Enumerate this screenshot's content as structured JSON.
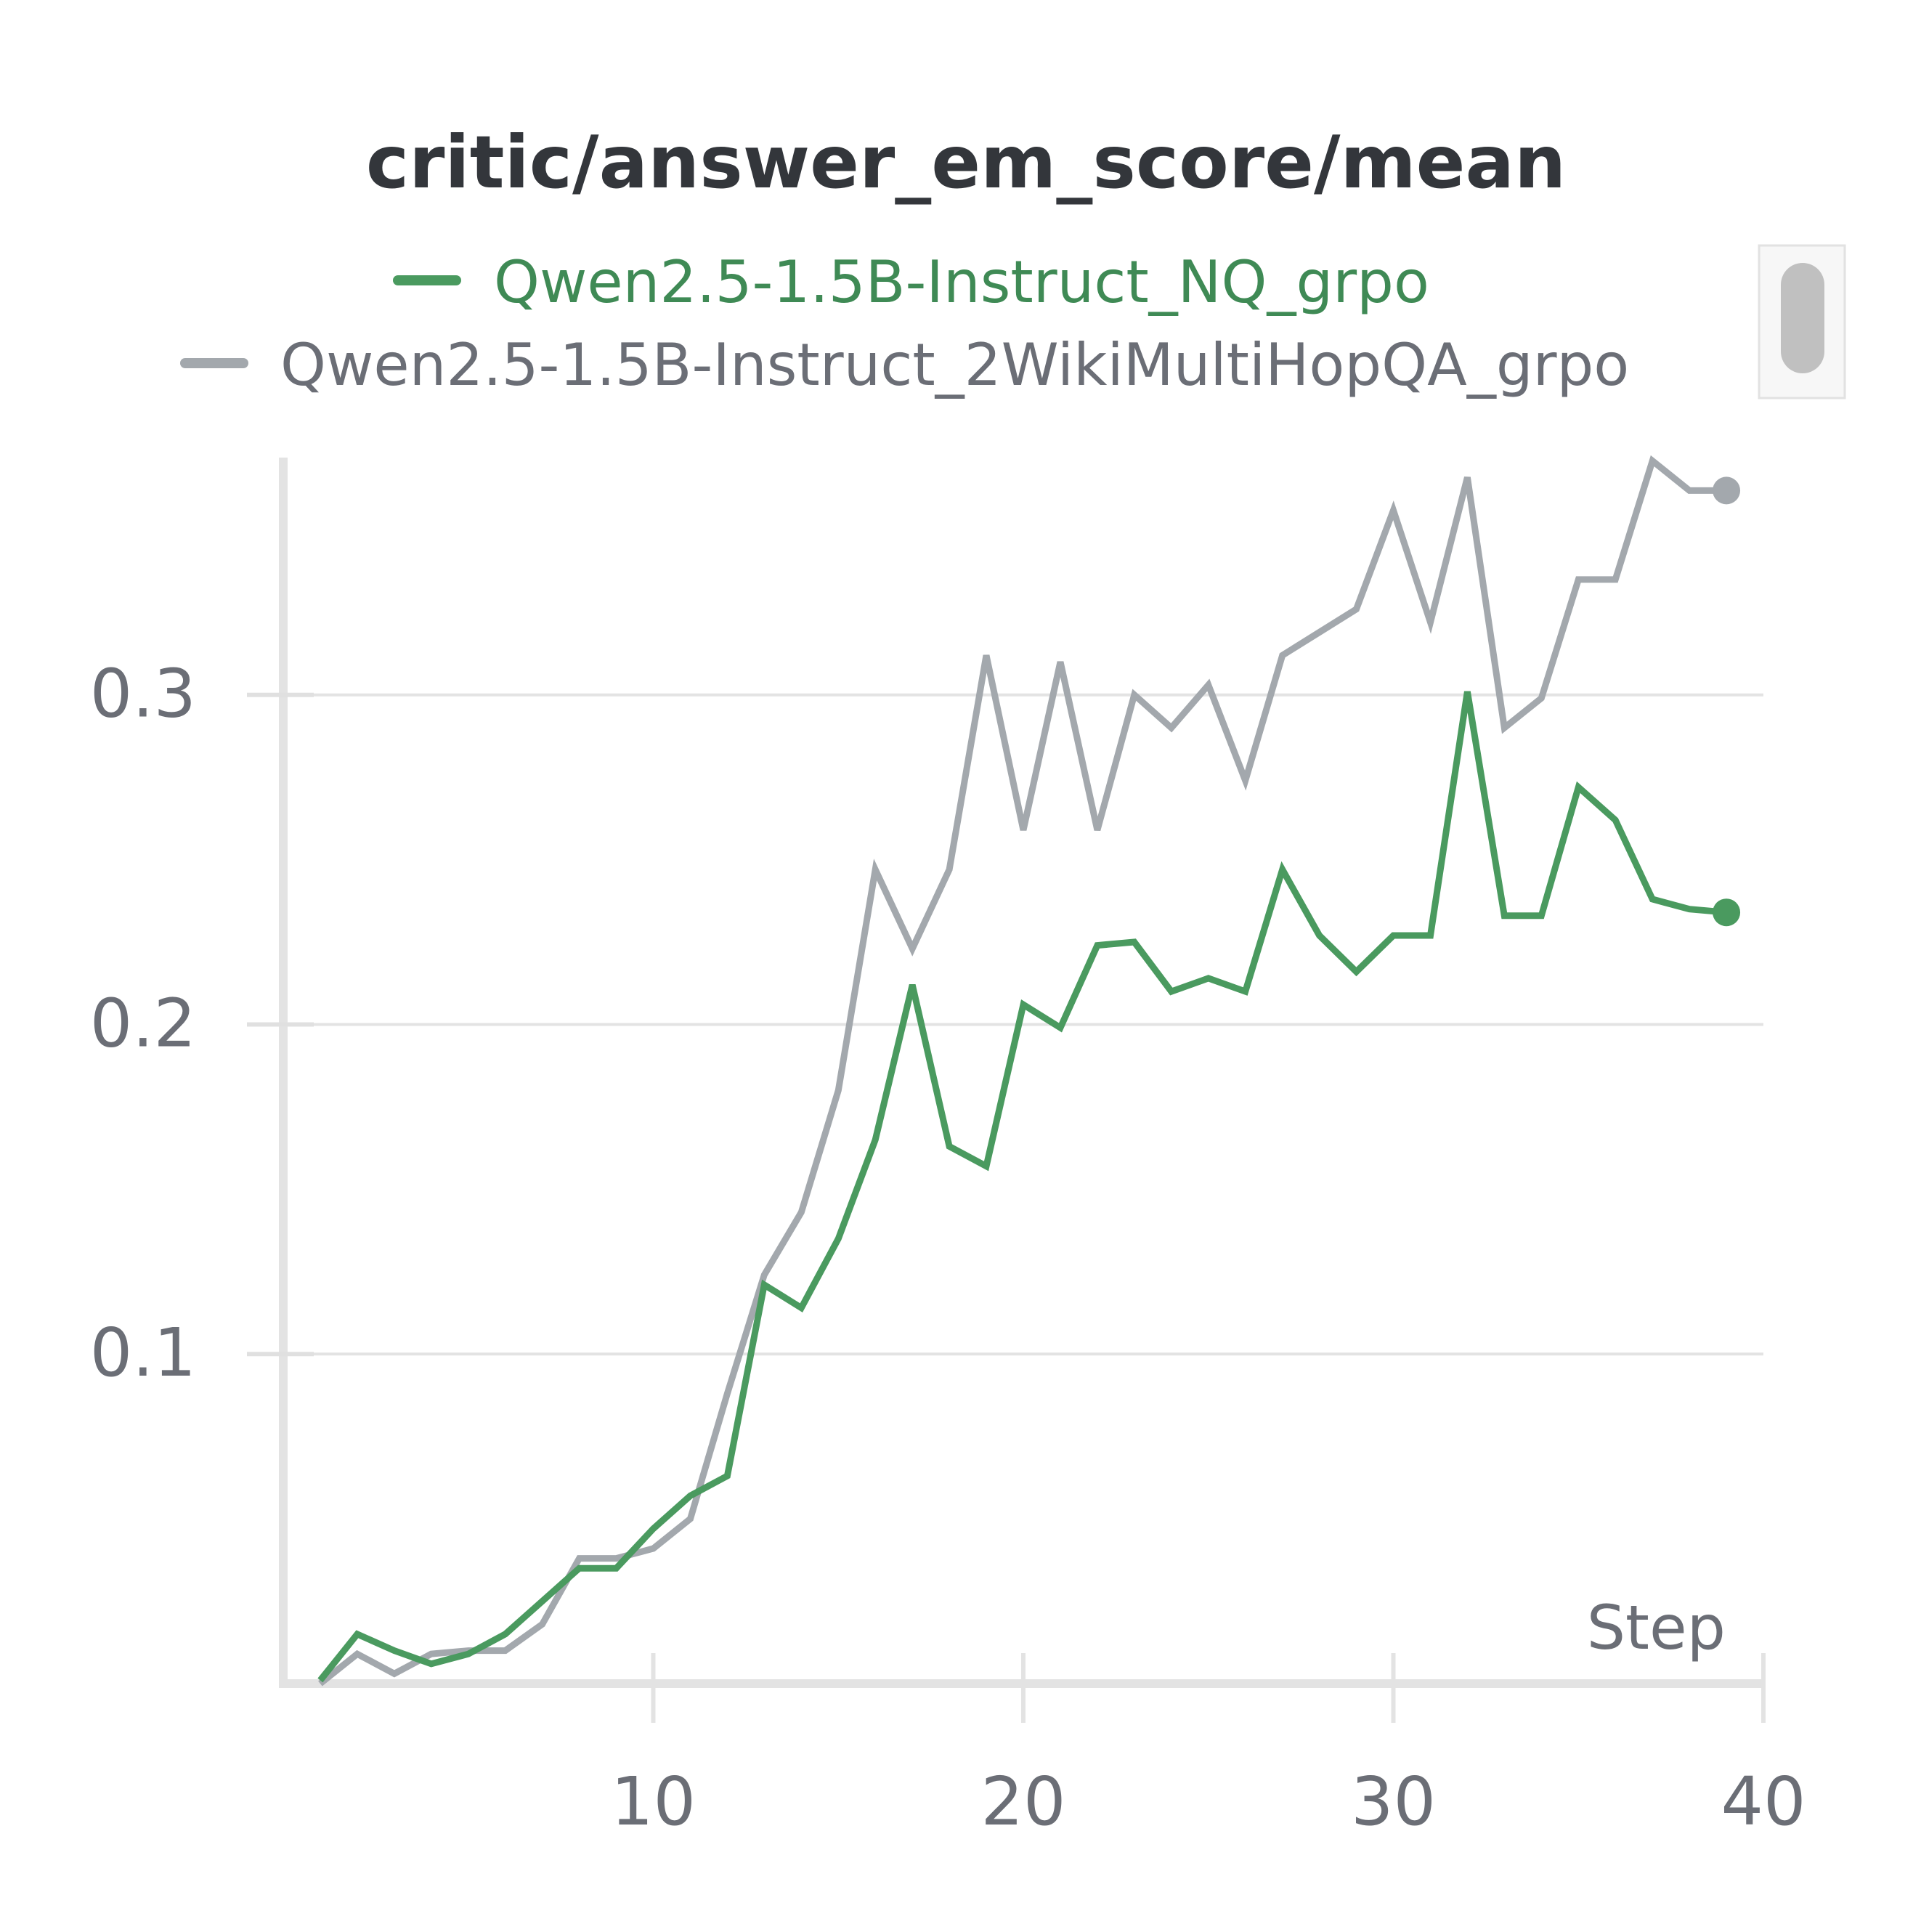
{
  "chart_data": {
    "type": "line",
    "title": "critic/answer_em_score/mean",
    "xlabel": "Step",
    "ylabel": "",
    "xlim": [
      0,
      40
    ],
    "ylim": [
      0,
      0.372
    ],
    "x_ticks": [
      10,
      20,
      30,
      40
    ],
    "y_ticks": [
      0.1,
      0.2,
      0.3
    ],
    "x_tick_labels": [
      "10",
      "20",
      "30",
      "40"
    ],
    "y_tick_labels": [
      "0.1",
      "0.2",
      "0.3"
    ],
    "grid": "horizontal",
    "legend_position": "top",
    "x": [
      1,
      2,
      3,
      4,
      5,
      6,
      7,
      8,
      9,
      10,
      11,
      12,
      13,
      14,
      15,
      16,
      17,
      18,
      19,
      20,
      21,
      22,
      23,
      24,
      25,
      26,
      27,
      28,
      29,
      30,
      31,
      32,
      33,
      34,
      35,
      36,
      37,
      38,
      39
    ],
    "series": [
      {
        "name": "Qwen2.5-1.5B-Instruct_NQ_grpo",
        "color": "#4a9a5f",
        "values": [
          0.001,
          0.015,
          0.01,
          0.006,
          0.009,
          0.015,
          0.025,
          0.035,
          0.035,
          0.047,
          0.057,
          0.063,
          0.121,
          0.114,
          0.135,
          0.165,
          0.212,
          0.163,
          0.157,
          0.206,
          0.199,
          0.224,
          0.225,
          0.21,
          0.214,
          0.21,
          0.247,
          0.227,
          0.216,
          0.227,
          0.227,
          0.301,
          0.233,
          0.233,
          0.272,
          0.262,
          0.238,
          0.235,
          0.234
        ]
      },
      {
        "name": "Qwen2.5-1.5B-Instruct_2WikiMultiHopQA_grpo",
        "color": "#a3a8ad",
        "values": [
          0.0,
          0.009,
          0.003,
          0.009,
          0.01,
          0.01,
          0.018,
          0.038,
          0.038,
          0.041,
          0.05,
          0.088,
          0.124,
          0.143,
          0.18,
          0.247,
          0.223,
          0.247,
          0.312,
          0.259,
          0.31,
          0.259,
          0.3,
          0.29,
          0.303,
          0.274,
          0.312,
          0.319,
          0.326,
          0.356,
          0.322,
          0.366,
          0.29,
          0.299,
          0.335,
          0.335,
          0.371,
          0.362,
          0.362
        ]
      }
    ]
  }
}
